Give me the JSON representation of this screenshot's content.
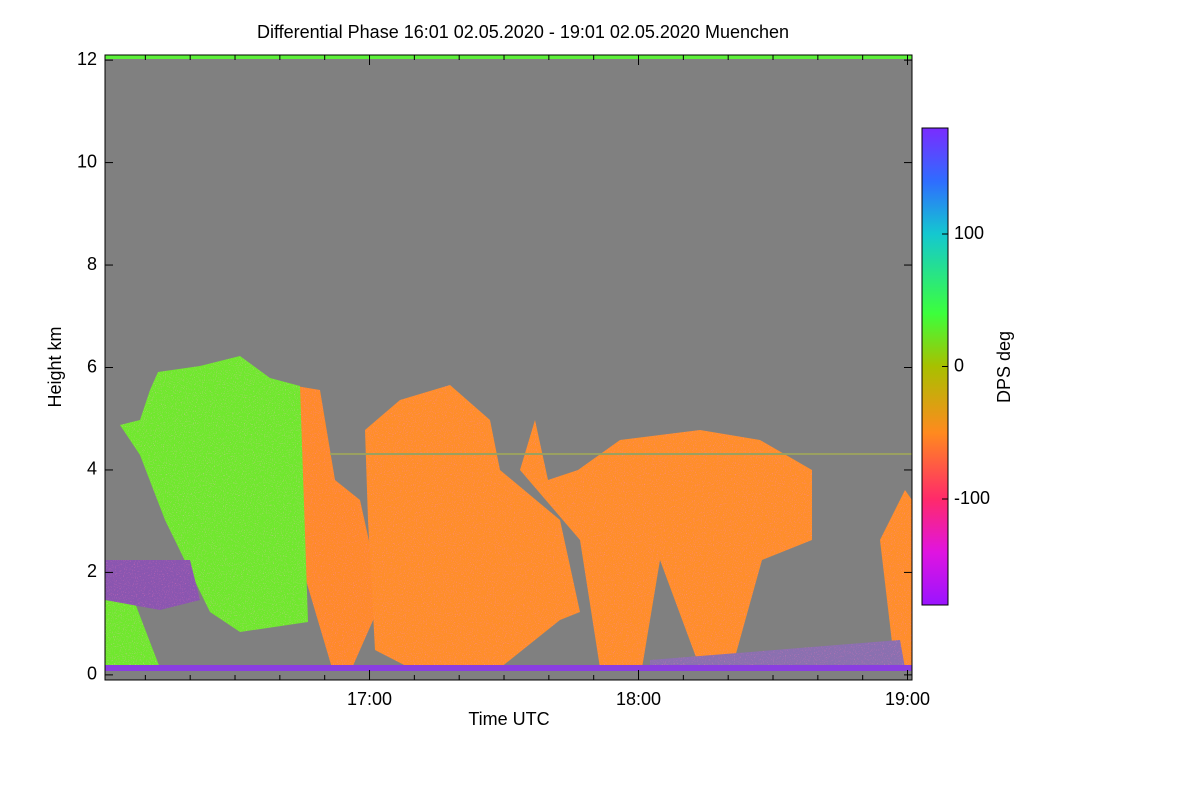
{
  "chart_data": {
    "type": "heatmap",
    "title": "Differential Phase   16:01 02.05.2020 - 19:01 02.05.2020 Muenchen",
    "xlabel": "Time UTC",
    "ylabel": "Height km",
    "xlim": [
      1,
      181
    ],
    "xticks": [
      {
        "value": 60,
        "label": "17:00"
      },
      {
        "value": 120,
        "label": "18:00"
      },
      {
        "value": 180,
        "label": "19:00"
      }
    ],
    "xminorticks": [
      10,
      20,
      30,
      40,
      50,
      70,
      80,
      90,
      100,
      110,
      130,
      140,
      150,
      160,
      170
    ],
    "ylim": [
      -0.1,
      12.1
    ],
    "yticks": [
      0,
      2,
      4,
      6,
      8,
      10,
      12
    ],
    "colorbar": {
      "label": "DPS deg",
      "clim": [
        -180,
        180
      ],
      "ticks": [
        100,
        0,
        -100
      ],
      "colorscale": [
        {
          "value": 180,
          "color": "#7a2cff"
        },
        {
          "value": 140,
          "color": "#2f6cff"
        },
        {
          "value": 100,
          "color": "#14c8d0"
        },
        {
          "value": 40,
          "color": "#3cff3c"
        },
        {
          "value": 0,
          "color": "#a8c000"
        },
        {
          "value": -50,
          "color": "#ff8a1e"
        },
        {
          "value": -100,
          "color": "#ff2a6a"
        },
        {
          "value": -140,
          "color": "#e014e0"
        },
        {
          "value": -180,
          "color": "#9a14ff"
        }
      ]
    }
  }
}
